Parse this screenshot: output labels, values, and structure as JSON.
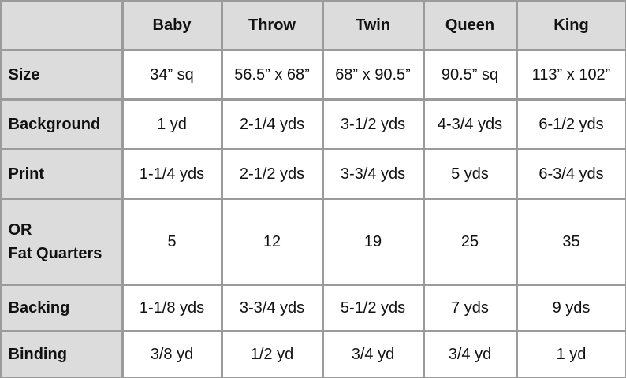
{
  "table": {
    "header": [
      "Baby",
      "Throw",
      "Twin",
      "Queen",
      "King"
    ],
    "rows": [
      {
        "label": [
          "Size"
        ],
        "cells": [
          "34” sq",
          "56.5” x 68”",
          "68” x 90.5”",
          "90.5” sq",
          "113” x 102”"
        ]
      },
      {
        "label": [
          "Background"
        ],
        "cells": [
          "1 yd",
          "2-1/4 yds",
          "3-1/2 yds",
          "4-3/4 yds",
          "6-1/2 yds"
        ]
      },
      {
        "label": [
          "Print"
        ],
        "cells": [
          "1-1/4 yds",
          "2-1/2 yds",
          "3-3/4 yds",
          "5 yds",
          "6-3/4 yds"
        ]
      },
      {
        "label": [
          "OR",
          "Fat Quarters"
        ],
        "cells": [
          "5",
          "12",
          "19",
          "25",
          "35"
        ]
      },
      {
        "label": [
          "Backing"
        ],
        "cells": [
          "1-1/8 yds",
          "3-3/4 yds",
          "5-1/2 yds",
          "7 yds",
          "9 yds"
        ]
      },
      {
        "label": [
          "Binding"
        ],
        "cells": [
          "3/8 yd",
          "1/2 yd",
          "3/4 yd",
          "3/4 yd",
          "1 yd"
        ]
      }
    ]
  }
}
